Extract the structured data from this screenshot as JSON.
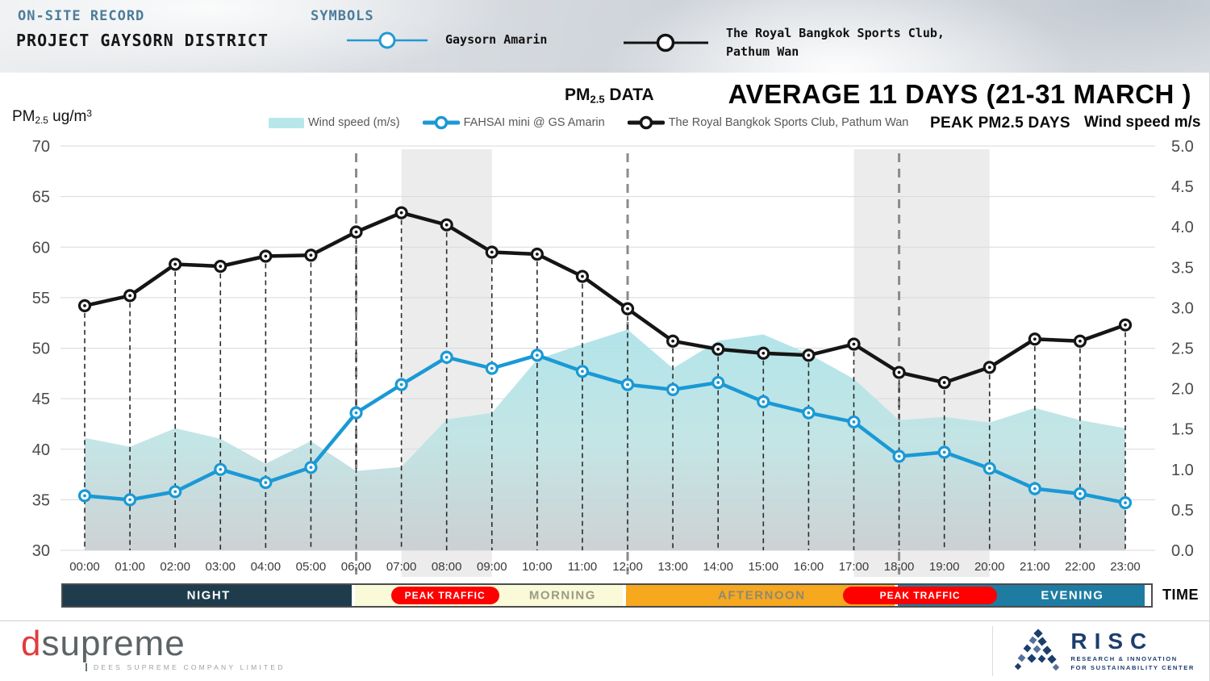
{
  "header": {
    "kicker": "ON-SITE RECORD",
    "title": "PROJECT GAYSORN DISTRICT",
    "symbols_label": "SYMBOLS",
    "symbols": [
      {
        "label_line1": "Gaysorn Amarin",
        "label_line2": "",
        "color": "#2299d6"
      },
      {
        "label_line1": "The Royal Bangkok Sports Club,",
        "label_line2": "Pathum Wan",
        "color": "#121212"
      }
    ]
  },
  "chart_header": {
    "kicker_main": "PM",
    "kicker_sub": "2.5",
    "kicker_rest": " DATA",
    "title": "AVERAGE 11 DAYS (21-31 MARCH )",
    "left_axis_main": "PM",
    "left_axis_sub": "2.5",
    "left_axis_rest": " ug/m",
    "left_axis_sup": "3",
    "peak_days_label": "PEAK PM2.5 DAYS",
    "right_axis_label": "Wind speed m/s"
  },
  "legend": [
    {
      "type": "area",
      "label": "Wind speed (m/s)",
      "color": "#b8e7e9"
    },
    {
      "type": "line",
      "label": "FAHSAI mini @ GS Amarin",
      "color": "#1a99d5"
    },
    {
      "type": "line",
      "label": "The Royal Bangkok Sports Club, Pathum Wan",
      "color": "#121212"
    }
  ],
  "chart_data": {
    "type": "line+area",
    "title": "PM2.5 DATA — AVERAGE 11 DAYS (21-31 MARCH)",
    "x": [
      "00:00",
      "01:00",
      "02:00",
      "03:00",
      "04:00",
      "05:00",
      "06:00",
      "07:00",
      "08:00",
      "09:00",
      "10:00",
      "11:00",
      "12:00",
      "13:00",
      "14:00",
      "15:00",
      "16:00",
      "17:00",
      "18:00",
      "19:00",
      "20:00",
      "21:00",
      "22:00",
      "23:00"
    ],
    "left_axis": {
      "label": "PM2.5 ug/m3",
      "min": 30,
      "max": 70,
      "ticks": [
        70,
        65,
        60,
        55,
        50,
        45,
        40,
        35,
        30
      ]
    },
    "right_axis": {
      "label": "Wind speed m/s",
      "min": 0.0,
      "max": 5.0,
      "ticks": [
        "5.0",
        "4.5",
        "4.0",
        "3.5",
        "3.0",
        "2.5",
        "2.0",
        "1.5",
        "1.0",
        "0.5",
        "0.0"
      ]
    },
    "grid": true,
    "legend_position": "top",
    "series": [
      {
        "name": "The Royal Bangkok Sports Club, Pathum Wan",
        "axis": "left",
        "type": "line",
        "color": "#151515",
        "values": [
          54.2,
          55.2,
          58.3,
          58.1,
          59.1,
          59.2,
          61.5,
          63.4,
          62.2,
          59.5,
          59.3,
          57.1,
          53.9,
          50.7,
          49.9,
          49.5,
          49.3,
          50.4,
          47.6,
          46.6,
          48.1,
          50.9,
          50.7,
          52.3
        ]
      },
      {
        "name": "FAHSAI mini @ GS Amarin",
        "axis": "left",
        "type": "line",
        "color": "#1a99d5",
        "values": [
          35.4,
          35.0,
          35.8,
          38.0,
          36.7,
          38.2,
          43.6,
          46.4,
          49.1,
          48.0,
          49.3,
          47.7,
          46.4,
          45.9,
          46.6,
          44.7,
          43.6,
          42.7,
          39.3,
          39.7,
          38.1,
          36.1,
          35.6,
          34.7
        ]
      },
      {
        "name": "Wind speed (m/s)",
        "axis": "right",
        "type": "area",
        "color": "#b8e7e9",
        "values": [
          1.39,
          1.28,
          1.51,
          1.38,
          1.07,
          1.35,
          0.98,
          1.03,
          1.62,
          1.7,
          2.36,
          2.55,
          2.73,
          2.25,
          2.59,
          2.67,
          2.43,
          2.12,
          1.61,
          1.65,
          1.58,
          1.76,
          1.61,
          1.51
        ]
      }
    ],
    "peak_columns": [
      {
        "from": "07:00",
        "to": "09:00"
      },
      {
        "from": "17:00",
        "to": "20:00"
      }
    ],
    "day_dividers": [
      "06:00",
      "12:00",
      "18:00"
    ]
  },
  "time_axis": {
    "label": "TIME",
    "bands": [
      {
        "label": "NIGHT",
        "from": "00:00",
        "to": "06:00",
        "bg": "#1e3c4c",
        "text_color": "#ffffff"
      },
      {
        "label": "MORNING",
        "from": "06:00",
        "to": "12:00",
        "bg": "#fbfad8",
        "text_color": "#9b9b85"
      },
      {
        "label": "AFTERNOON",
        "from": "12:00",
        "to": "18:00",
        "bg": "#f6a81f",
        "text_color": "#8f8a70"
      },
      {
        "label": "EVENING",
        "from": "18:00",
        "to": "24:00",
        "bg": "#1e7ca2",
        "text_color": "#ffffff"
      }
    ],
    "pills": [
      {
        "label": "PEAK TRAFFIC",
        "from": "07:00",
        "to": "09:00",
        "bg": "#fe0000",
        "text_color": "#ffffff"
      },
      {
        "label": "PEAK TRAFFIC",
        "from": "17:00",
        "to": "20:00",
        "bg": "#fe0000",
        "text_color": "#ffffff"
      }
    ]
  },
  "footer": {
    "dsupreme": {
      "d": "d",
      "rest": "supreme",
      "tagline": "DEES SUPREME COMPANY LIMITED",
      "d_color": "#e23a3c",
      "text_color": "#5d6467"
    },
    "risc": {
      "name": "RISC",
      "tagline_line1": "RESEARCH & INNOVATION",
      "tagline_line2": "FOR SUSTAINABILITY CENTER",
      "color": "#1d3e6d"
    }
  }
}
